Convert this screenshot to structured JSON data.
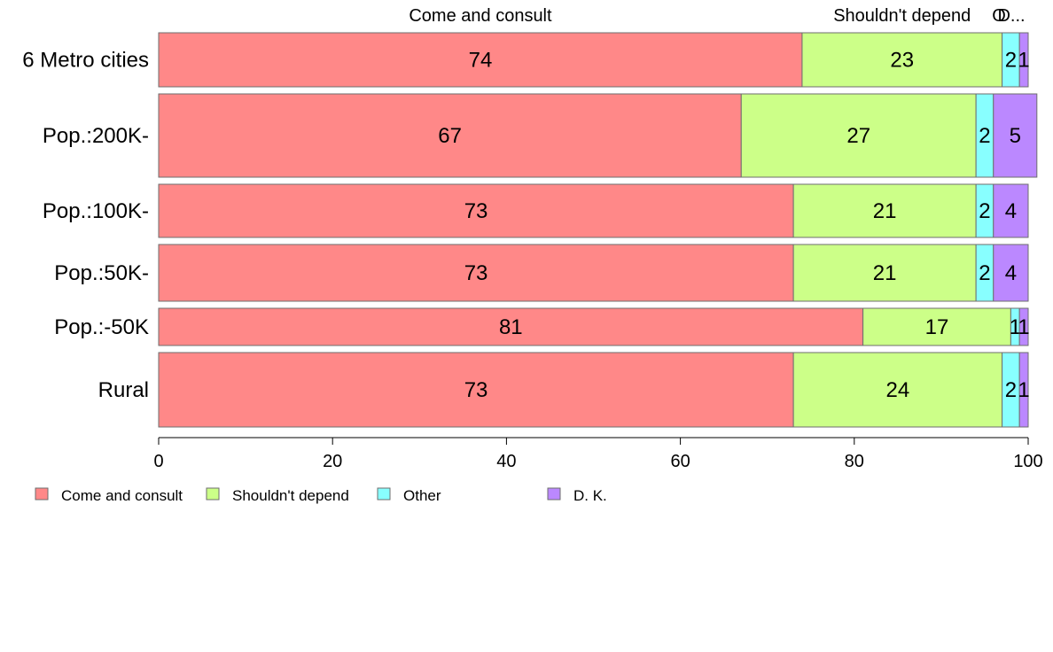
{
  "chart_data": {
    "type": "bar",
    "orientation": "horizontal",
    "stacked": true,
    "categories": [
      "6 Metro cities",
      "Pop.:200K-",
      "Pop.:100K-",
      "Pop.:50K-",
      "Pop.:-50K",
      "Rural"
    ],
    "series": [
      {
        "name": "Come and consult",
        "color": "#FF8888",
        "values": [
          74,
          67,
          73,
          73,
          81,
          73
        ]
      },
      {
        "name": "Shouldn't depend",
        "color": "#CCFF88",
        "values": [
          23,
          27,
          21,
          21,
          17,
          24
        ]
      },
      {
        "name": "Other",
        "color": "#88FFFF",
        "values": [
          2,
          2,
          2,
          2,
          1,
          2
        ]
      },
      {
        "name": "D. K.",
        "color": "#BB88FF",
        "values": [
          1,
          5,
          4,
          4,
          1,
          1
        ]
      }
    ],
    "top_labels": [
      "Come and consult",
      "Shouldn't depend",
      "O",
      "D..."
    ],
    "xlim": [
      0,
      100
    ],
    "xticks": [
      0,
      20,
      40,
      60,
      80,
      100
    ],
    "legend_position": "bottom-left",
    "grid": false
  }
}
